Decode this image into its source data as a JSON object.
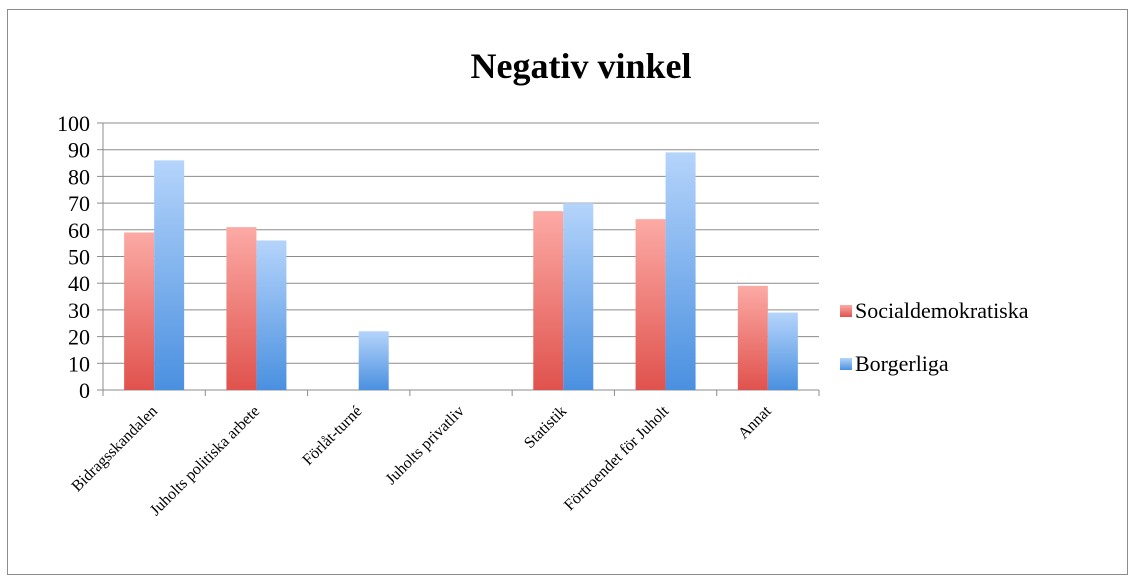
{
  "chart_data": {
    "type": "bar",
    "title": "Negativ vinkel",
    "xlabel": "",
    "ylabel": "",
    "categories": [
      "Bidragsskandalen",
      "Juholts politiska arbete",
      "Förlåt-turné",
      "Juholts privatliv",
      "Statistik",
      "Förtroendet för Juholt",
      "Annat"
    ],
    "series": [
      {
        "name": "Socialdemokratiska",
        "values": [
          59,
          61,
          0,
          0,
          67,
          64,
          39
        ],
        "color_top": "#fcaaa5",
        "color_bottom": "#e0524d"
      },
      {
        "name": "Borgerliga",
        "values": [
          86,
          56,
          22,
          0,
          70,
          89,
          29
        ],
        "color_top": "#b5d4fb",
        "color_bottom": "#4a90e0"
      }
    ],
    "ylim": [
      0,
      100
    ],
    "yticks": [
      0,
      10,
      20,
      30,
      40,
      50,
      60,
      70,
      80,
      90,
      100
    ],
    "grid": true,
    "legend_position": "right"
  }
}
